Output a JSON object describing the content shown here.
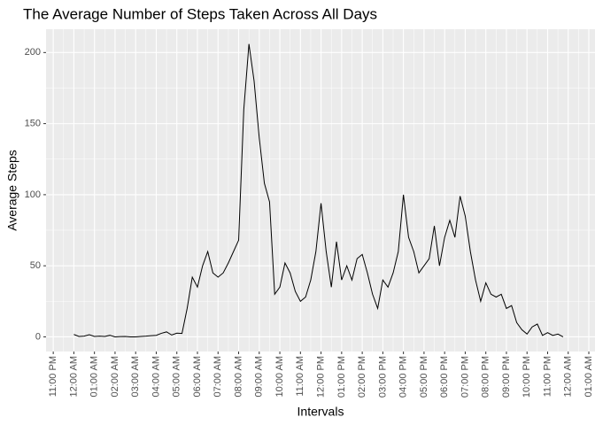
{
  "chart_data": {
    "type": "line",
    "title": "The Average Number of Steps Taken Across All Days",
    "x_label": "Intervals",
    "y_label": "Average Steps",
    "color": "#000000",
    "grid": true,
    "x": [
      0,
      0.25,
      0.5,
      0.75,
      1,
      1.25,
      1.5,
      1.75,
      2,
      2.25,
      2.5,
      2.75,
      3,
      3.25,
      3.5,
      3.75,
      4,
      4.25,
      4.5,
      4.75,
      5,
      5.25,
      5.5,
      5.75,
      6,
      6.25,
      6.5,
      6.75,
      7,
      7.25,
      7.5,
      7.75,
      8,
      8.25,
      8.5,
      8.75,
      9,
      9.25,
      9.5,
      9.75,
      10,
      10.25,
      10.5,
      10.75,
      11,
      11.25,
      11.5,
      11.75,
      12,
      12.25,
      12.5,
      12.75,
      13,
      13.25,
      13.5,
      13.75,
      14,
      14.25,
      14.5,
      14.75,
      15,
      15.25,
      15.5,
      15.75,
      16,
      16.25,
      16.5,
      16.75,
      17,
      17.25,
      17.5,
      17.75,
      18,
      18.25,
      18.5,
      18.75,
      19,
      19.25,
      19.5,
      19.75,
      20,
      20.25,
      20.5,
      20.75,
      21,
      21.25,
      21.5,
      21.75,
      22,
      22.25,
      22.5,
      22.75,
      23,
      23.25,
      23.5,
      23.75
    ],
    "values": [
      1.7,
      0.3,
      0.5,
      1.5,
      0.3,
      0.5,
      0.3,
      1.1,
      0,
      0.2,
      0.3,
      0,
      0,
      0.3,
      0.5,
      0.8,
      1.1,
      2.5,
      3.5,
      1.3,
      2.6,
      2.4,
      20,
      42,
      35,
      50,
      60,
      45,
      42,
      45,
      52,
      60,
      68,
      160,
      206,
      180,
      140,
      108,
      95,
      30,
      35,
      52,
      45,
      32,
      25,
      28,
      40,
      60,
      94,
      60,
      35,
      67,
      40,
      50,
      40,
      55,
      58,
      45,
      30,
      20,
      40,
      35,
      45,
      60,
      100,
      70,
      60,
      45,
      50,
      55,
      78,
      50,
      70,
      82,
      70,
      99,
      85,
      60,
      40,
      25,
      38,
      30,
      28,
      30,
      20,
      22,
      10,
      5,
      2,
      7,
      9,
      1,
      3,
      1,
      2,
      0
    ],
    "xlim": [
      -1.35,
      25.3
    ],
    "ylim": [
      -10.3,
      216.4
    ],
    "xticks": [
      {
        "value": -1,
        "label": "11:00 PM"
      },
      {
        "value": 0,
        "label": "12:00 AM"
      },
      {
        "value": 1,
        "label": "01:00 AM"
      },
      {
        "value": 2,
        "label": "02:00 AM"
      },
      {
        "value": 3,
        "label": "03:00 AM"
      },
      {
        "value": 4,
        "label": "04:00 AM"
      },
      {
        "value": 5,
        "label": "05:00 AM"
      },
      {
        "value": 6,
        "label": "06:00 AM"
      },
      {
        "value": 7,
        "label": "07:00 AM"
      },
      {
        "value": 8,
        "label": "08:00 AM"
      },
      {
        "value": 9,
        "label": "09:00 AM"
      },
      {
        "value": 10,
        "label": "10:00 AM"
      },
      {
        "value": 11,
        "label": "11:00 AM"
      },
      {
        "value": 12,
        "label": "12:00 PM"
      },
      {
        "value": 13,
        "label": "01:00 PM"
      },
      {
        "value": 14,
        "label": "02:00 PM"
      },
      {
        "value": 15,
        "label": "03:00 PM"
      },
      {
        "value": 16,
        "label": "04:00 PM"
      },
      {
        "value": 17,
        "label": "05:00 PM"
      },
      {
        "value": 18,
        "label": "06:00 PM"
      },
      {
        "value": 19,
        "label": "07:00 PM"
      },
      {
        "value": 20,
        "label": "08:00 PM"
      },
      {
        "value": 21,
        "label": "09:00 PM"
      },
      {
        "value": 22,
        "label": "10:00 PM"
      },
      {
        "value": 23,
        "label": "11:00 PM"
      },
      {
        "value": 24,
        "label": "12:00 AM"
      },
      {
        "value": 25,
        "label": "01:00 AM"
      }
    ],
    "yticks": [
      0,
      50,
      100,
      150,
      200
    ]
  }
}
